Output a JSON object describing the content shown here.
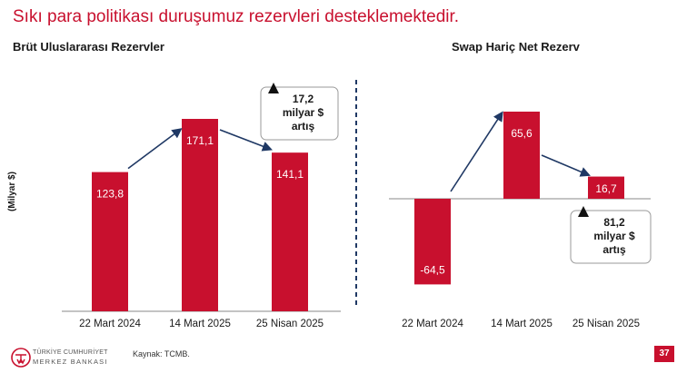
{
  "slide_title": "Sıkı para politikası duruşumuz rezervleri desteklemektedir.",
  "y_axis_label": "(Milyar $)",
  "colors": {
    "bar": "#c8102e",
    "accent": "#c8102e",
    "arrow": "#1f3864",
    "divider": "#1f3864"
  },
  "chart_data": [
    {
      "type": "bar",
      "title": "Brüt Uluslararası Rezervler",
      "ylabel": "(Milyar $)",
      "categories": [
        "22 Mart 2024",
        "14 Mart 2025",
        "25 Nisan 2025"
      ],
      "values": [
        123.8,
        171.1,
        141.1
      ],
      "value_labels": [
        "123,8",
        "171,1",
        "141,1"
      ],
      "annotation": {
        "line1": "17,2",
        "line2": "milyar $",
        "line3": "artış",
        "icon": "triangle-up-icon"
      }
    },
    {
      "type": "bar",
      "title": "Swap Hariç Net Rezerv",
      "ylabel": "(Milyar $)",
      "categories": [
        "22 Mart 2024",
        "14 Mart 2025",
        "25 Nisan 2025"
      ],
      "values": [
        -64.5,
        65.6,
        16.7
      ],
      "value_labels": [
        "-64,5",
        "65,6",
        "16,7"
      ],
      "annotation": {
        "line1": "81,2",
        "line2": "milyar $",
        "line3": "artış",
        "icon": "triangle-up-icon"
      }
    }
  ],
  "footer": {
    "source": "Kaynak: TCMB.",
    "page_number": "37",
    "logo_line1": "TÜRKİYE CUMHURİYET",
    "logo_line2": "MERKEZ BANKASI",
    "logo_icon": "tcmb-logo-icon"
  }
}
